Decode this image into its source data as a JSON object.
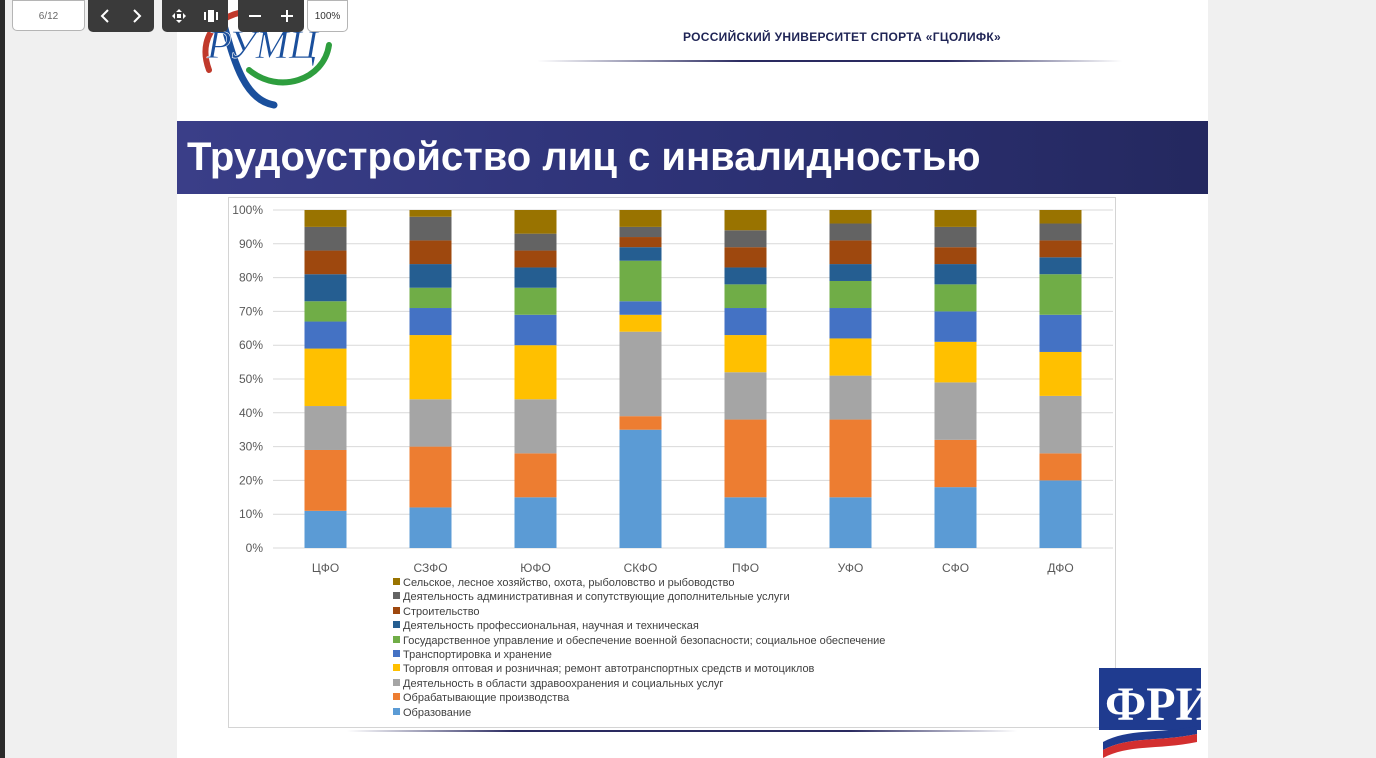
{
  "viewer": {
    "page_indicator": "6/12",
    "zoom": "100%"
  },
  "slide": {
    "university": "РОССИЙСКИЙ УНИВЕРСИТЕТ СПОРТА «ГЦОЛИФК»",
    "title": "Трудоустройство лиц с инвалидностью",
    "logo_text": "РУМЦ",
    "logo2_text": "ФРИ"
  },
  "chart_data": {
    "type": "bar",
    "stacked": true,
    "percent": true,
    "categories": [
      "ЦФО",
      "СЗФО",
      "ЮФО",
      "СКФО",
      "ПФО",
      "УФО",
      "СФО",
      "ДФО"
    ],
    "yticks": [
      "0%",
      "10%",
      "20%",
      "30%",
      "40%",
      "50%",
      "60%",
      "70%",
      "80%",
      "90%",
      "100%"
    ],
    "ylim": [
      0,
      100
    ],
    "grid": true,
    "legend_position": "bottom",
    "series": [
      {
        "name": "Образование",
        "color": "#5b9bd5",
        "values": [
          11,
          12,
          15,
          35,
          15,
          15,
          18,
          20
        ]
      },
      {
        "name": "Обрабатывающие  производства",
        "color": "#ed7d31",
        "values": [
          18,
          18,
          13,
          4,
          23,
          23,
          14,
          8
        ]
      },
      {
        "name": "Деятельность в области здравоохранения  и социальных услуг",
        "color": "#a5a5a5",
        "values": [
          13,
          14,
          16,
          25,
          14,
          13,
          17,
          17
        ]
      },
      {
        "name": "Торговля оптовая и розничная; ремонт автотранспортных средств и мотоциклов",
        "color": "#ffc000",
        "values": [
          17,
          19,
          16,
          5,
          11,
          11,
          12,
          13
        ]
      },
      {
        "name": "Транспортировка  и хранение",
        "color": "#4472c4",
        "values": [
          8,
          8,
          9,
          4,
          8,
          9,
          9,
          11
        ]
      },
      {
        "name": "Государственное управление и обеспечение  военной безопасности; социальное обеспечение",
        "color": "#70ad47",
        "values": [
          6,
          6,
          8,
          12,
          7,
          8,
          8,
          12
        ]
      },
      {
        "name": "Деятельность профессиональная,  научная и техническая",
        "color": "#255e91",
        "values": [
          8,
          7,
          6,
          4,
          5,
          5,
          6,
          5
        ]
      },
      {
        "name": "Строительство",
        "color": "#9e480e",
        "values": [
          7,
          7,
          5,
          3,
          6,
          7,
          5,
          5
        ]
      },
      {
        "name": "Деятельность административная  и сопутствующие дополнительные услуги",
        "color": "#636363",
        "values": [
          7,
          7,
          5,
          3,
          5,
          5,
          6,
          5
        ]
      },
      {
        "name": "Сельское, лесное хозяйство, охота, рыболовство и рыбоводство",
        "color": "#997300",
        "values": [
          5,
          2,
          7,
          5,
          6,
          4,
          5,
          4
        ]
      }
    ]
  }
}
